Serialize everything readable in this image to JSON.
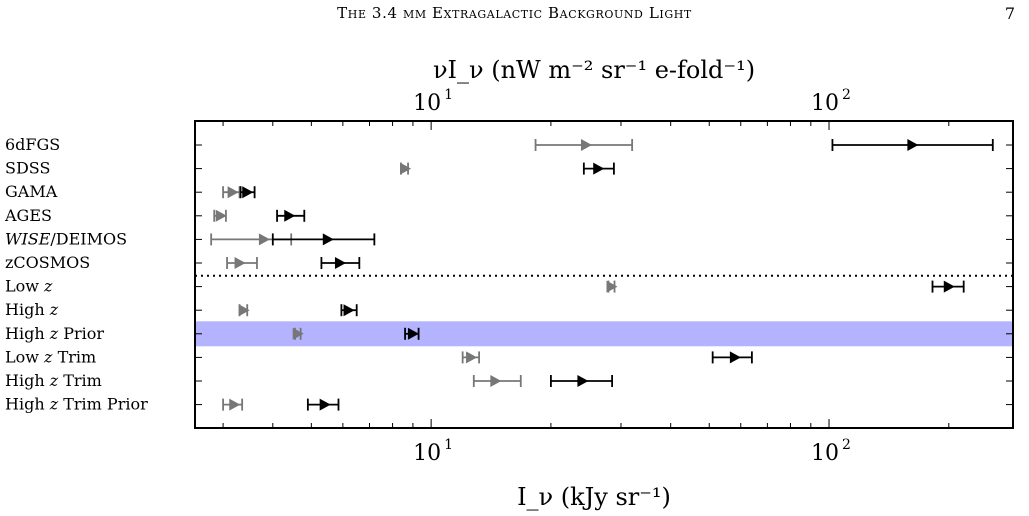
{
  "header": {
    "title": "The 3.4 μm Extragalactic Background Light",
    "page_number": "7"
  },
  "chart_data": {
    "type": "scatter",
    "title": "",
    "xlabel_bottom": "I_ν (kJy sr⁻¹)",
    "xlabel_top": "νI_ν (nW m⁻² sr⁻¹ e-fold⁻¹)",
    "xscale": "log",
    "xlim": [
      2.55,
      290
    ],
    "bottom_ticks": [
      {
        "value": 10,
        "base": "10",
        "exp": "1"
      },
      {
        "value": 100,
        "base": "10",
        "exp": "2"
      }
    ],
    "top_ticks": [
      {
        "value": 10,
        "base": "10",
        "exp": "1"
      },
      {
        "value": 100,
        "base": "10",
        "exp": "2"
      }
    ],
    "grid": false,
    "divider_after_row": 5,
    "highlight_row": "High z Prior",
    "colors": {
      "series_gray": "#777777",
      "series_black": "#000000",
      "band": "#b3b3ff"
    },
    "categories": [
      "6dFGS",
      "SDSS",
      "GAMA",
      "AGES",
      "WISE/DEIMOS",
      "zCOSMOS",
      "Low z",
      "High z",
      "High z Prior",
      "Low z Trim",
      "High z Trim",
      "High z Trim Prior"
    ],
    "series": [
      {
        "color": "#777777",
        "points": [
          {
            "category": "6dFGS",
            "x": 24.5,
            "lo": 18.3,
            "hi": 32.0
          },
          {
            "category": "SDSS",
            "x": 8.6,
            "lo": 8.4,
            "hi": 8.75
          },
          {
            "category": "GAMA",
            "x": 3.17,
            "lo": 3.0,
            "hi": 3.3
          },
          {
            "category": "AGES",
            "x": 2.96,
            "lo": 2.85,
            "hi": 3.05
          },
          {
            "category": "WISE/DEIMOS",
            "x": 3.8,
            "lo": 2.8,
            "hi": 4.45
          },
          {
            "category": "zCOSMOS",
            "x": 3.3,
            "lo": 3.07,
            "hi": 3.65
          },
          {
            "category": "Low z",
            "x": 28.4,
            "lo": 27.9,
            "hi": 28.9
          },
          {
            "category": "High z",
            "x": 3.38,
            "lo": 3.3,
            "hi": 3.45
          },
          {
            "category": "High z Prior",
            "x": 4.62,
            "lo": 4.55,
            "hi": 4.7
          },
          {
            "category": "Low z Trim",
            "x": 12.6,
            "lo": 12.0,
            "hi": 13.2
          },
          {
            "category": "High z Trim",
            "x": 14.5,
            "lo": 12.8,
            "hi": 16.8
          },
          {
            "category": "High z Trim Prior",
            "x": 3.2,
            "lo": 3.0,
            "hi": 3.35
          }
        ]
      },
      {
        "color": "#000000",
        "points": [
          {
            "category": "6dFGS",
            "x": 162,
            "lo": 102,
            "hi": 258
          },
          {
            "category": "SDSS",
            "x": 26.3,
            "lo": 24.2,
            "hi": 28.8
          },
          {
            "category": "GAMA",
            "x": 3.45,
            "lo": 3.32,
            "hi": 3.6
          },
          {
            "category": "AGES",
            "x": 4.4,
            "lo": 4.1,
            "hi": 4.8
          },
          {
            "category": "WISE/DEIMOS",
            "x": 5.5,
            "lo": 4.0,
            "hi": 7.2
          },
          {
            "category": "zCOSMOS",
            "x": 5.9,
            "lo": 5.3,
            "hi": 6.6
          },
          {
            "category": "Low z",
            "x": 200,
            "lo": 182,
            "hi": 218
          },
          {
            "category": "High z",
            "x": 6.2,
            "lo": 5.95,
            "hi": 6.5
          },
          {
            "category": "High z Prior",
            "x": 9.0,
            "lo": 8.6,
            "hi": 9.3
          },
          {
            "category": "Low z Trim",
            "x": 58,
            "lo": 51,
            "hi": 64
          },
          {
            "category": "High z Trim",
            "x": 24,
            "lo": 20,
            "hi": 28.5
          },
          {
            "category": "High z Trim Prior",
            "x": 5.4,
            "lo": 4.9,
            "hi": 5.85
          }
        ]
      }
    ]
  }
}
